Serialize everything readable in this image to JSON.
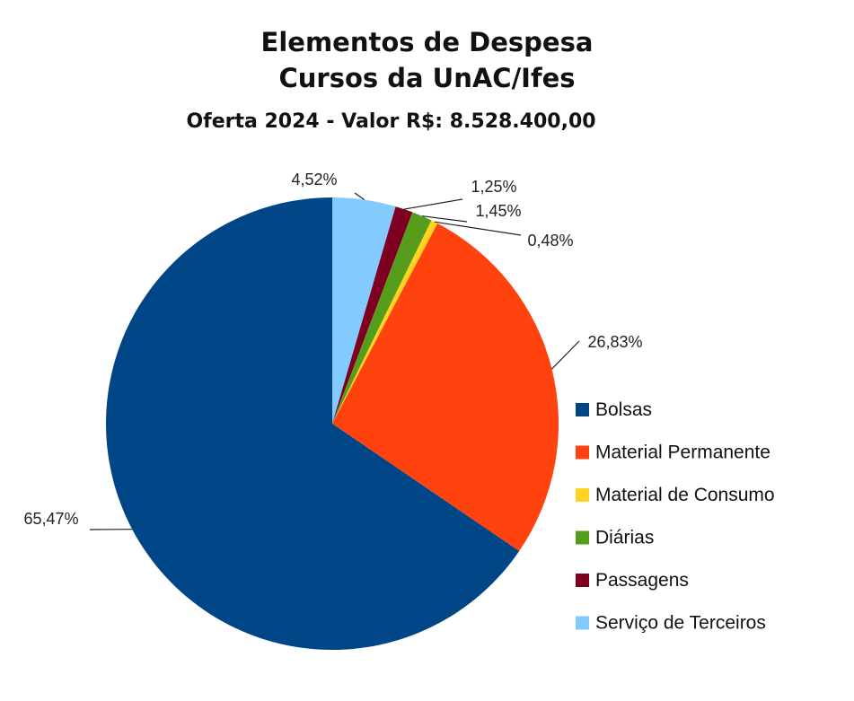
{
  "title": "Elementos de Despesa",
  "subtitle": "Cursos da UnAC/Ifes",
  "caption": "Oferta 2024 - Valor R$: 8.528.400,00",
  "chart_data": {
    "type": "pie",
    "title": "Elementos de Despesa Cursos da UnAC/Ifes",
    "subtitle": "Oferta 2024 - Valor R$: 8.528.400,00",
    "legend": "right",
    "slices": [
      {
        "name": "Serviço de Terceiros",
        "value": 4.52,
        "label": "4,52%",
        "color": "#83caff"
      },
      {
        "name": "Passagens",
        "value": 1.25,
        "label": "1,25%",
        "color": "#7e0021"
      },
      {
        "name": "Diárias",
        "value": 1.45,
        "label": "1,45%",
        "color": "#579d1c"
      },
      {
        "name": "Material de Consumo",
        "value": 0.48,
        "label": "0,48%",
        "color": "#ffd320"
      },
      {
        "name": "Material Permanente",
        "value": 26.83,
        "label": "26,83%",
        "color": "#ff420e"
      },
      {
        "name": "Bolsas",
        "value": 65.47,
        "label": "65,47%",
        "color": "#004586"
      }
    ],
    "legend_order": [
      "Bolsas",
      "Material Permanente",
      "Material de Consumo",
      "Diárias",
      "Passagens",
      "Serviço de Terceiros"
    ]
  }
}
